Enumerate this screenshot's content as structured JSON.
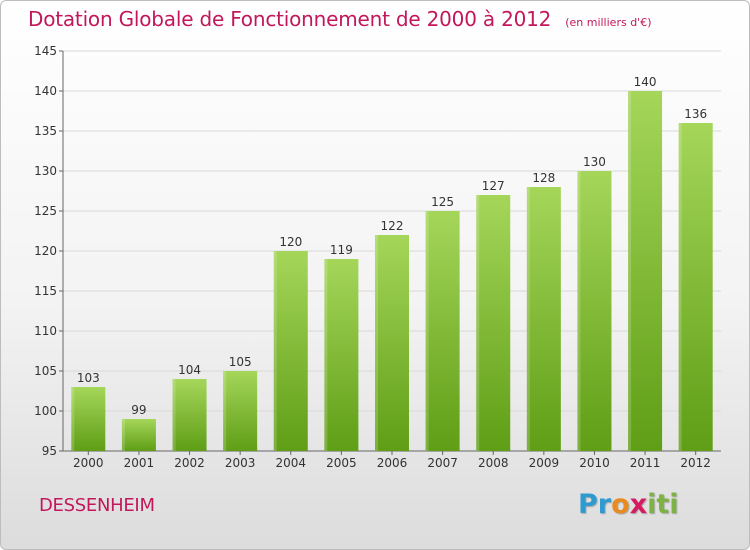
{
  "header": {
    "title": "Dotation Globale de Fonctionnement de 2000 à 2012",
    "unit": "(en milliers d'€)"
  },
  "footer": {
    "commune": "DESSENHEIM",
    "logo_letters": [
      "P",
      "r",
      "o",
      "x",
      "i",
      "t",
      "i"
    ],
    "logo_colors": [
      "#2e9ad0",
      "#2e9ad0",
      "#e98b1e",
      "#d81b60",
      "#7cb342",
      "#7cb342",
      "#7cb342"
    ]
  },
  "colors": {
    "title": "#c2185b",
    "bar_top": "#a5d65a",
    "bar_bottom": "#5f9e16",
    "grid": "#d9d9d9"
  },
  "chart_data": {
    "type": "bar",
    "title": "Dotation Globale de Fonctionnement de 2000 à 2012",
    "subtitle": "(en milliers d'€)",
    "xlabel": "",
    "ylabel": "",
    "categories": [
      "2000",
      "2001",
      "2002",
      "2003",
      "2004",
      "2005",
      "2006",
      "2007",
      "2008",
      "2009",
      "2010",
      "2011",
      "2012"
    ],
    "values": [
      103,
      99,
      104,
      105,
      120,
      119,
      122,
      125,
      127,
      128,
      130,
      140,
      136
    ],
    "ylim": [
      95,
      145
    ],
    "yticks": [
      95,
      100,
      105,
      110,
      115,
      120,
      125,
      130,
      135,
      140,
      145
    ],
    "grid": true,
    "legend": "none"
  }
}
